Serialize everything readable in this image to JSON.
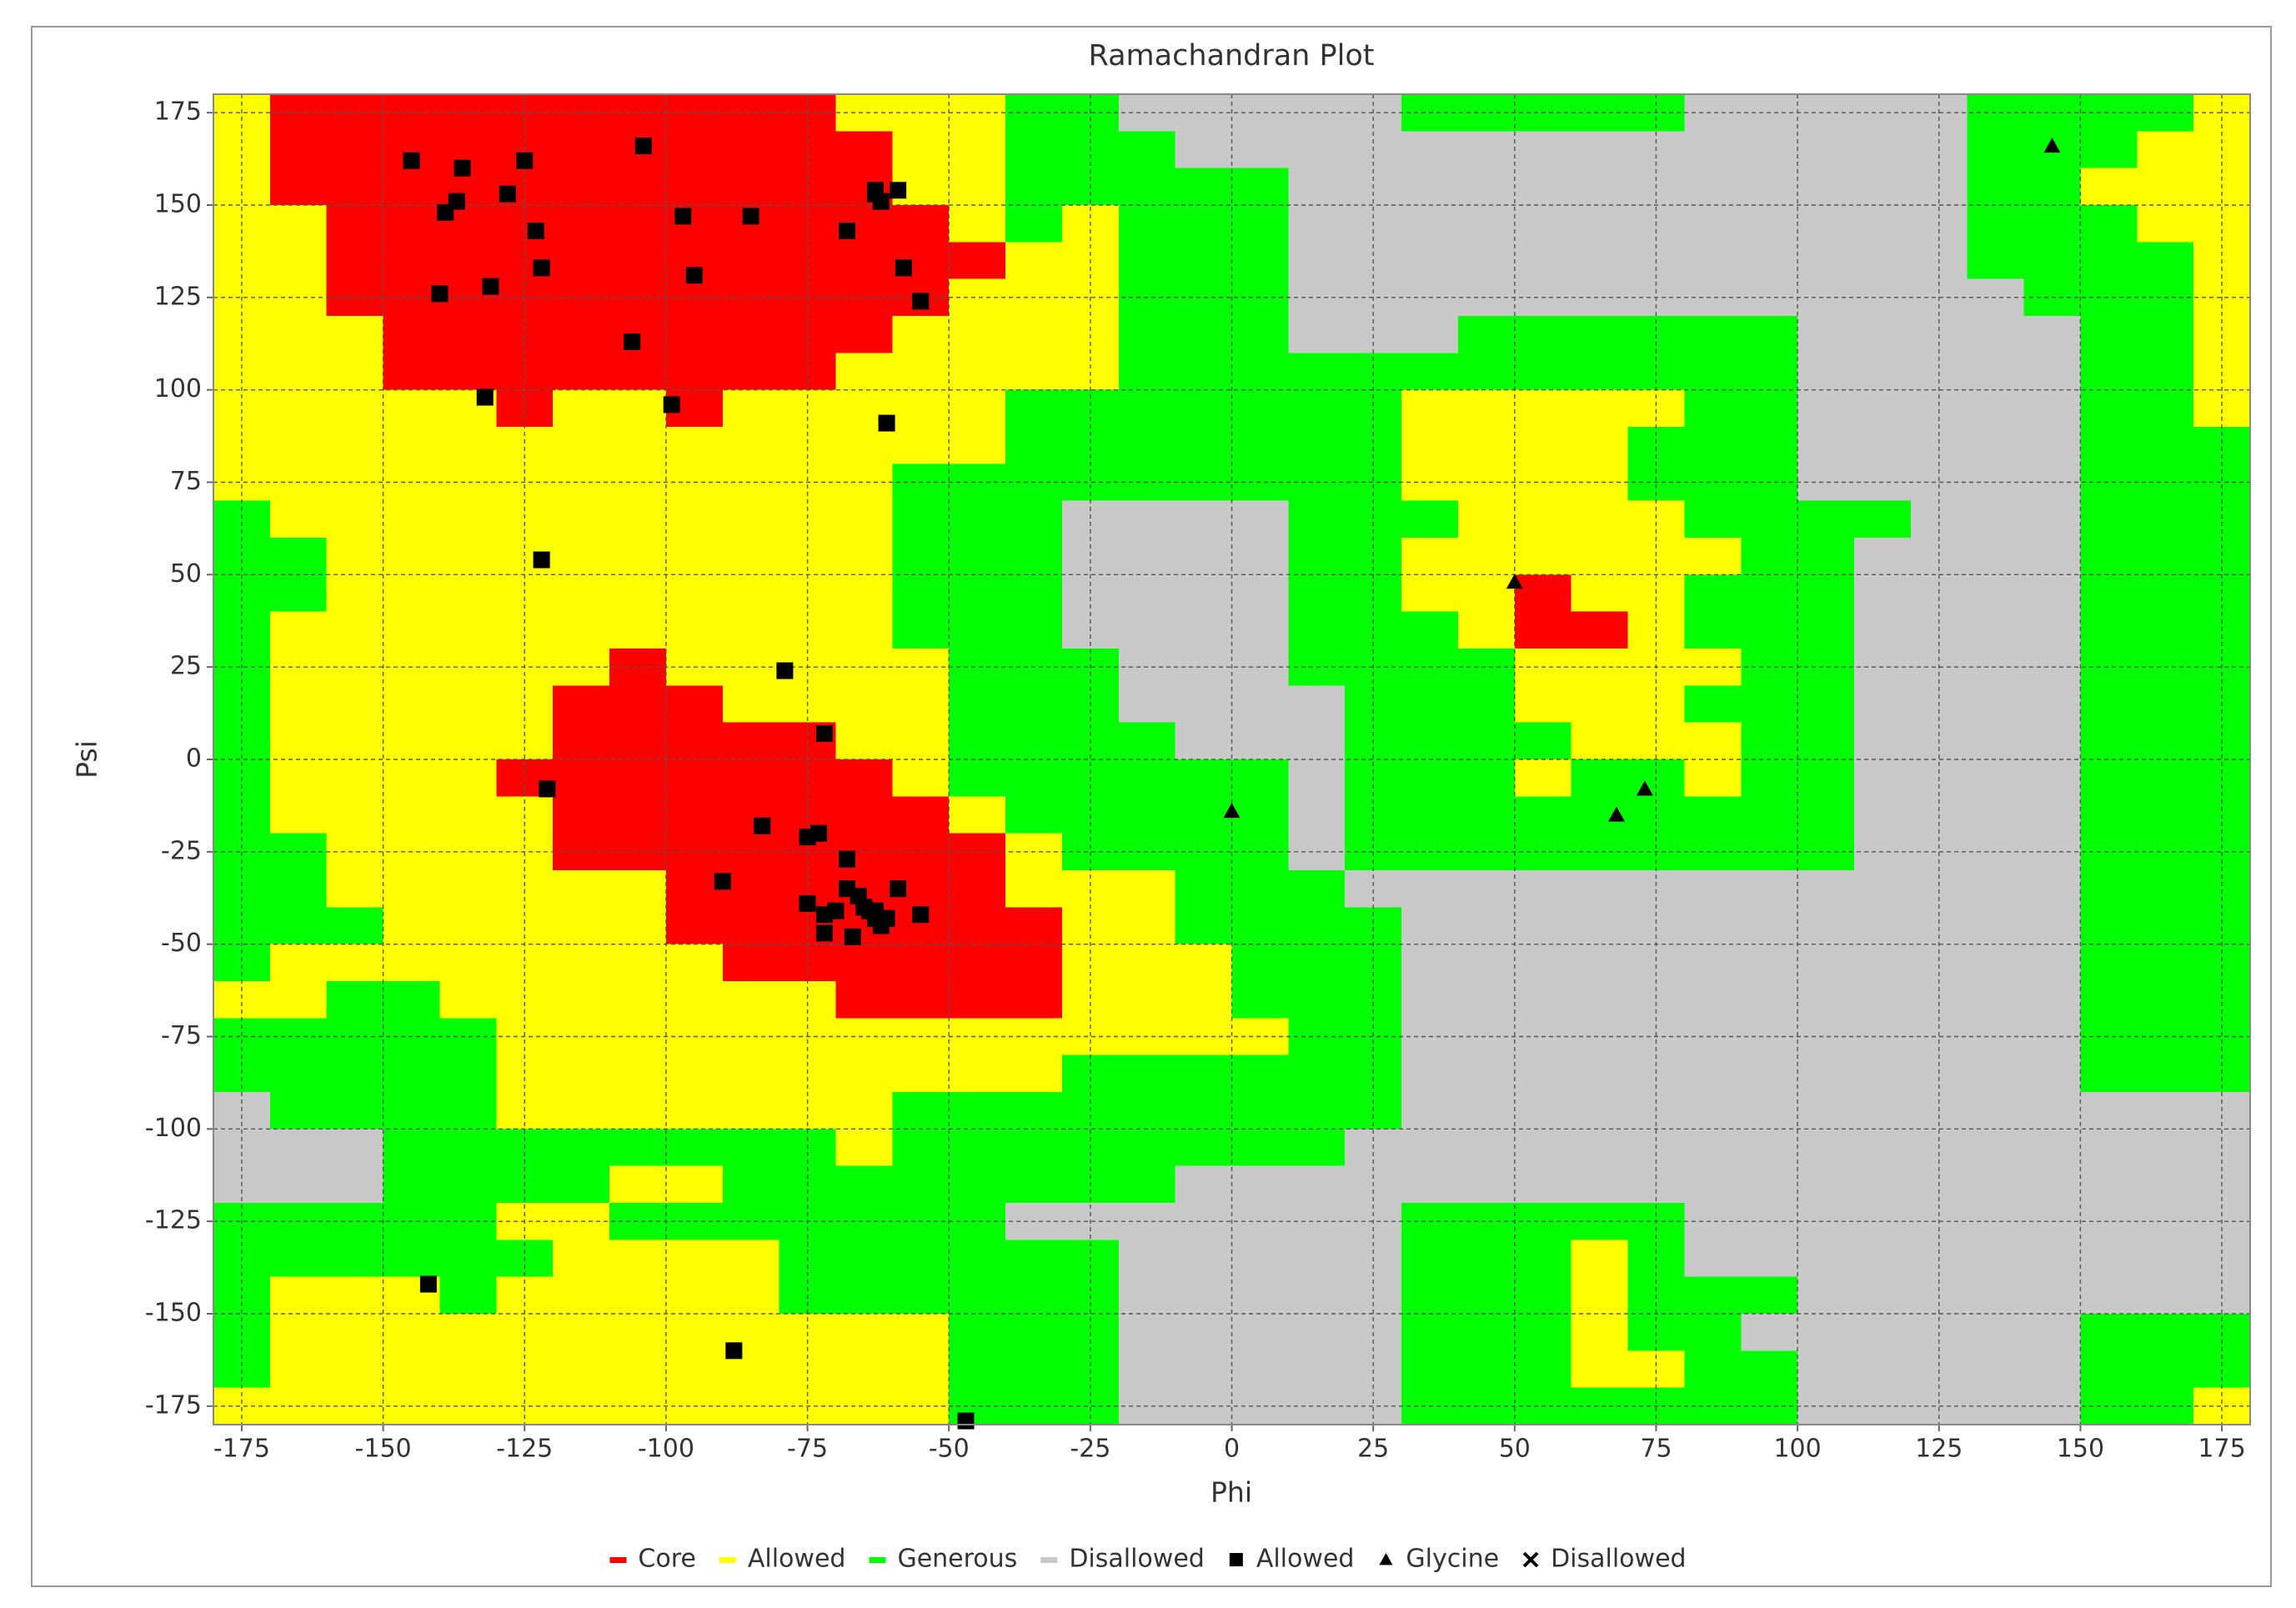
{
  "chart_data": {
    "type": "ramachandran",
    "title": "Ramachandran Plot",
    "xlabel": "Phi",
    "ylabel": "Psi",
    "xlim": [
      -180,
      180
    ],
    "ylim": [
      -180,
      180
    ],
    "xticks": [
      -175,
      -150,
      -125,
      -100,
      -75,
      -50,
      -25,
      0,
      25,
      50,
      75,
      100,
      125,
      150,
      175
    ],
    "yticks": [
      -175,
      -150,
      -125,
      -100,
      -75,
      -50,
      -25,
      0,
      25,
      50,
      75,
      100,
      125,
      150,
      175
    ],
    "grid": true,
    "regions": [
      {
        "name": "Core",
        "color": "#ff0000"
      },
      {
        "name": "Allowed",
        "color": "#ffff00"
      },
      {
        "name": "Generous",
        "color": "#00ff00"
      },
      {
        "name": "Disallowed",
        "color": "#c8c8c8"
      }
    ],
    "region_map": [
      [
        1,
        0,
        0,
        0,
        0,
        0,
        0,
        0,
        0,
        0,
        0,
        1,
        1,
        1,
        2,
        2,
        3,
        3,
        3,
        3,
        3,
        2,
        2,
        2,
        2,
        2,
        3,
        3,
        3,
        3,
        3,
        2,
        2,
        2,
        2,
        1
      ],
      [
        1,
        0,
        0,
        0,
        0,
        0,
        0,
        0,
        0,
        0,
        0,
        0,
        1,
        1,
        2,
        2,
        2,
        3,
        3,
        3,
        3,
        3,
        3,
        3,
        3,
        3,
        3,
        3,
        3,
        3,
        3,
        2,
        2,
        2,
        1,
        1
      ],
      [
        1,
        0,
        0,
        0,
        0,
        0,
        0,
        0,
        0,
        0,
        0,
        0,
        1,
        1,
        2,
        2,
        2,
        2,
        2,
        3,
        3,
        3,
        3,
        3,
        3,
        3,
        3,
        3,
        3,
        3,
        3,
        2,
        2,
        1,
        1,
        1
      ],
      [
        1,
        1,
        0,
        0,
        0,
        0,
        0,
        0,
        0,
        0,
        0,
        0,
        0,
        1,
        2,
        1,
        2,
        2,
        2,
        3,
        3,
        3,
        3,
        3,
        3,
        3,
        3,
        3,
        3,
        3,
        3,
        2,
        2,
        2,
        1,
        1
      ],
      [
        1,
        1,
        0,
        0,
        0,
        0,
        0,
        0,
        0,
        0,
        0,
        0,
        0,
        0,
        1,
        1,
        2,
        2,
        2,
        3,
        3,
        3,
        3,
        3,
        3,
        3,
        3,
        3,
        3,
        3,
        3,
        2,
        2,
        2,
        2,
        1
      ],
      [
        1,
        1,
        0,
        0,
        0,
        0,
        0,
        0,
        0,
        0,
        0,
        0,
        0,
        1,
        1,
        1,
        2,
        2,
        2,
        3,
        3,
        3,
        3,
        3,
        3,
        3,
        3,
        3,
        3,
        3,
        3,
        3,
        2,
        2,
        2,
        1
      ],
      [
        1,
        1,
        1,
        0,
        0,
        0,
        0,
        0,
        0,
        0,
        0,
        0,
        1,
        1,
        1,
        1,
        2,
        2,
        2,
        3,
        3,
        3,
        2,
        2,
        2,
        2,
        2,
        2,
        3,
        3,
        3,
        3,
        3,
        2,
        2,
        1
      ],
      [
        1,
        1,
        1,
        0,
        0,
        0,
        0,
        0,
        0,
        0,
        0,
        1,
        1,
        1,
        1,
        1,
        2,
        2,
        2,
        2,
        2,
        2,
        2,
        2,
        2,
        2,
        2,
        2,
        3,
        3,
        3,
        3,
        3,
        2,
        2,
        1
      ],
      [
        1,
        1,
        1,
        1,
        1,
        0,
        1,
        1,
        0,
        1,
        1,
        1,
        1,
        1,
        2,
        2,
        2,
        2,
        2,
        2,
        2,
        1,
        1,
        1,
        1,
        1,
        2,
        2,
        3,
        3,
        3,
        3,
        3,
        2,
        2,
        1
      ],
      [
        1,
        1,
        1,
        1,
        1,
        1,
        1,
        1,
        1,
        1,
        1,
        1,
        1,
        1,
        2,
        2,
        2,
        2,
        2,
        2,
        2,
        1,
        1,
        1,
        1,
        2,
        2,
        2,
        3,
        3,
        3,
        3,
        3,
        2,
        2,
        2
      ],
      [
        1,
        1,
        1,
        1,
        1,
        1,
        1,
        1,
        1,
        1,
        1,
        1,
        2,
        2,
        2,
        2,
        2,
        2,
        2,
        2,
        2,
        1,
        1,
        1,
        1,
        2,
        2,
        2,
        3,
        3,
        3,
        3,
        3,
        2,
        2,
        2
      ],
      [
        2,
        1,
        1,
        1,
        1,
        1,
        1,
        1,
        1,
        1,
        1,
        1,
        2,
        2,
        2,
        3,
        3,
        3,
        3,
        2,
        2,
        2,
        1,
        1,
        1,
        1,
        2,
        2,
        2,
        2,
        3,
        3,
        3,
        2,
        2,
        2
      ],
      [
        2,
        2,
        1,
        1,
        1,
        1,
        1,
        1,
        1,
        1,
        1,
        1,
        2,
        2,
        2,
        3,
        3,
        3,
        3,
        2,
        2,
        1,
        1,
        1,
        1,
        1,
        1,
        2,
        2,
        3,
        3,
        3,
        3,
        2,
        2,
        2
      ],
      [
        2,
        2,
        1,
        1,
        1,
        1,
        1,
        1,
        1,
        1,
        1,
        1,
        2,
        2,
        2,
        3,
        3,
        3,
        3,
        2,
        2,
        1,
        1,
        0,
        1,
        1,
        2,
        2,
        2,
        3,
        3,
        3,
        3,
        2,
        2,
        2
      ],
      [
        2,
        1,
        1,
        1,
        1,
        1,
        1,
        1,
        1,
        1,
        1,
        1,
        2,
        2,
        2,
        3,
        3,
        3,
        3,
        2,
        2,
        2,
        1,
        0,
        0,
        1,
        2,
        2,
        2,
        3,
        3,
        3,
        3,
        2,
        2,
        2
      ],
      [
        2,
        1,
        1,
        1,
        1,
        1,
        1,
        0,
        1,
        1,
        1,
        1,
        1,
        2,
        2,
        2,
        3,
        3,
        3,
        2,
        2,
        2,
        2,
        1,
        1,
        1,
        1,
        2,
        2,
        3,
        3,
        3,
        3,
        2,
        2,
        2
      ],
      [
        2,
        1,
        1,
        1,
        1,
        1,
        0,
        0,
        0,
        1,
        1,
        1,
        1,
        2,
        2,
        2,
        3,
        3,
        3,
        3,
        2,
        2,
        2,
        1,
        1,
        1,
        2,
        2,
        2,
        3,
        3,
        3,
        3,
        2,
        2,
        2
      ],
      [
        2,
        1,
        1,
        1,
        1,
        1,
        0,
        0,
        0,
        0,
        0,
        1,
        1,
        2,
        2,
        2,
        2,
        3,
        3,
        3,
        2,
        2,
        2,
        2,
        1,
        1,
        1,
        2,
        2,
        3,
        3,
        3,
        3,
        2,
        2,
        2
      ],
      [
        2,
        1,
        1,
        1,
        1,
        0,
        0,
        0,
        0,
        0,
        0,
        0,
        1,
        2,
        2,
        2,
        2,
        2,
        2,
        3,
        2,
        2,
        2,
        1,
        2,
        2,
        1,
        2,
        2,
        3,
        3,
        3,
        3,
        2,
        2,
        2
      ],
      [
        2,
        1,
        1,
        1,
        1,
        1,
        0,
        0,
        0,
        0,
        0,
        0,
        0,
        1,
        2,
        2,
        2,
        2,
        2,
        3,
        2,
        2,
        2,
        2,
        2,
        2,
        2,
        2,
        2,
        3,
        3,
        3,
        3,
        2,
        2,
        2
      ],
      [
        2,
        2,
        1,
        1,
        1,
        1,
        0,
        0,
        0,
        0,
        0,
        0,
        0,
        0,
        1,
        2,
        2,
        2,
        2,
        3,
        2,
        2,
        2,
        2,
        2,
        2,
        2,
        2,
        2,
        3,
        3,
        3,
        3,
        2,
        2,
        2
      ],
      [
        2,
        2,
        1,
        1,
        1,
        1,
        1,
        1,
        0,
        0,
        0,
        0,
        0,
        0,
        1,
        1,
        1,
        2,
        2,
        2,
        3,
        3,
        3,
        3,
        3,
        3,
        3,
        3,
        3,
        3,
        3,
        3,
        3,
        2,
        2,
        2
      ],
      [
        2,
        2,
        2,
        1,
        1,
        1,
        1,
        1,
        0,
        0,
        0,
        0,
        0,
        0,
        0,
        1,
        1,
        2,
        2,
        2,
        2,
        3,
        3,
        3,
        3,
        3,
        3,
        3,
        3,
        3,
        3,
        3,
        3,
        2,
        2,
        2
      ],
      [
        2,
        1,
        1,
        1,
        1,
        1,
        1,
        1,
        1,
        0,
        0,
        0,
        0,
        0,
        0,
        1,
        1,
        1,
        2,
        2,
        2,
        3,
        3,
        3,
        3,
        3,
        3,
        3,
        3,
        3,
        3,
        3,
        3,
        2,
        2,
        2
      ],
      [
        1,
        1,
        2,
        2,
        1,
        1,
        1,
        1,
        1,
        1,
        1,
        0,
        0,
        0,
        0,
        1,
        1,
        1,
        2,
        2,
        2,
        3,
        3,
        3,
        3,
        3,
        3,
        3,
        3,
        3,
        3,
        3,
        3,
        2,
        2,
        2
      ],
      [
        2,
        2,
        2,
        2,
        2,
        1,
        1,
        1,
        1,
        1,
        1,
        1,
        1,
        1,
        1,
        1,
        1,
        1,
        1,
        2,
        2,
        3,
        3,
        3,
        3,
        3,
        3,
        3,
        3,
        3,
        3,
        3,
        3,
        2,
        2,
        2
      ],
      [
        2,
        2,
        2,
        2,
        2,
        1,
        1,
        1,
        1,
        1,
        1,
        1,
        1,
        1,
        1,
        2,
        2,
        2,
        2,
        2,
        2,
        3,
        3,
        3,
        3,
        3,
        3,
        3,
        3,
        3,
        3,
        3,
        3,
        2,
        2,
        2
      ],
      [
        3,
        2,
        2,
        2,
        2,
        1,
        1,
        1,
        1,
        1,
        1,
        1,
        2,
        2,
        2,
        2,
        2,
        2,
        2,
        2,
        2,
        3,
        3,
        3,
        3,
        3,
        3,
        3,
        3,
        3,
        3,
        3,
        3,
        3,
        3,
        3
      ],
      [
        3,
        3,
        3,
        2,
        2,
        2,
        2,
        2,
        2,
        2,
        2,
        1,
        2,
        2,
        2,
        2,
        2,
        2,
        2,
        2,
        3,
        3,
        3,
        3,
        3,
        3,
        3,
        3,
        3,
        3,
        3,
        3,
        3,
        3,
        3,
        3
      ],
      [
        3,
        3,
        3,
        2,
        2,
        2,
        2,
        1,
        1,
        2,
        2,
        2,
        2,
        2,
        2,
        2,
        2,
        3,
        3,
        3,
        3,
        3,
        3,
        3,
        3,
        3,
        3,
        3,
        3,
        3,
        3,
        3,
        3,
        3,
        3,
        3
      ],
      [
        2,
        2,
        2,
        2,
        2,
        1,
        1,
        2,
        2,
        2,
        2,
        2,
        2,
        2,
        3,
        3,
        3,
        3,
        3,
        3,
        3,
        2,
        2,
        2,
        2,
        2,
        3,
        3,
        3,
        3,
        3,
        3,
        3,
        3,
        3,
        3
      ],
      [
        2,
        2,
        2,
        2,
        2,
        2,
        1,
        1,
        1,
        1,
        2,
        2,
        2,
        2,
        2,
        2,
        3,
        3,
        3,
        3,
        3,
        2,
        2,
        2,
        1,
        2,
        3,
        3,
        3,
        3,
        3,
        3,
        3,
        3,
        3,
        3
      ],
      [
        2,
        1,
        1,
        1,
        2,
        1,
        1,
        1,
        1,
        1,
        2,
        2,
        2,
        2,
        2,
        2,
        3,
        3,
        3,
        3,
        3,
        2,
        2,
        2,
        1,
        2,
        2,
        2,
        3,
        3,
        3,
        3,
        3,
        3,
        3,
        3
      ],
      [
        2,
        1,
        1,
        1,
        1,
        1,
        1,
        1,
        1,
        1,
        1,
        1,
        1,
        2,
        2,
        2,
        3,
        3,
        3,
        3,
        3,
        2,
        2,
        2,
        1,
        2,
        2,
        3,
        3,
        3,
        3,
        3,
        3,
        2,
        2,
        2
      ],
      [
        2,
        1,
        1,
        1,
        1,
        1,
        1,
        1,
        1,
        1,
        1,
        1,
        1,
        2,
        2,
        2,
        3,
        3,
        3,
        3,
        3,
        2,
        2,
        2,
        1,
        1,
        2,
        2,
        3,
        3,
        3,
        3,
        3,
        2,
        2,
        2
      ],
      [
        1,
        1,
        1,
        1,
        1,
        1,
        1,
        1,
        1,
        1,
        1,
        1,
        1,
        2,
        2,
        2,
        3,
        3,
        3,
        3,
        3,
        2,
        2,
        2,
        2,
        2,
        2,
        2,
        3,
        3,
        3,
        3,
        3,
        2,
        2,
        1
      ]
    ],
    "series": [
      {
        "name": "Allowed",
        "marker": "square",
        "color": "#000000",
        "x": [
          -145,
          -136,
          -125,
          -104,
          -137,
          -139,
          -128,
          -123,
          -122,
          -131,
          -140,
          -97,
          -85,
          -95,
          -106,
          -63,
          -62,
          -63,
          -59,
          -68,
          -58,
          -55,
          -132,
          -99,
          -61,
          -122,
          -79,
          -72,
          -121,
          -83,
          -75,
          -73,
          -68,
          -90,
          -75,
          -68,
          -66,
          -72,
          -70,
          -65,
          -63,
          -64,
          -61,
          -63,
          -62,
          -59,
          -55,
          -72,
          -67,
          -142,
          -88,
          -47
        ],
        "y": [
          162,
          160,
          162,
          166,
          151,
          148,
          153,
          143,
          133,
          128,
          126,
          147,
          147,
          131,
          113,
          153,
          151,
          154,
          154,
          143,
          133,
          124,
          98,
          96,
          91,
          54,
          24,
          7,
          -8,
          -18,
          -21,
          -20,
          -27,
          -33,
          -39,
          -35,
          -37,
          -42,
          -41,
          -40,
          -41,
          -41,
          -43,
          -43,
          -45,
          -35,
          -42,
          -47,
          -48,
          -142,
          -160,
          -179
        ]
      },
      {
        "name": "Glycine",
        "marker": "triangle",
        "color": "#000000",
        "x": [
          145,
          50,
          0,
          68,
          73
        ],
        "y": [
          166,
          48,
          -14,
          -15,
          -8
        ]
      },
      {
        "name": "Disallowed",
        "marker": "cross",
        "color": "#000000",
        "x": [],
        "y": []
      }
    ]
  }
}
